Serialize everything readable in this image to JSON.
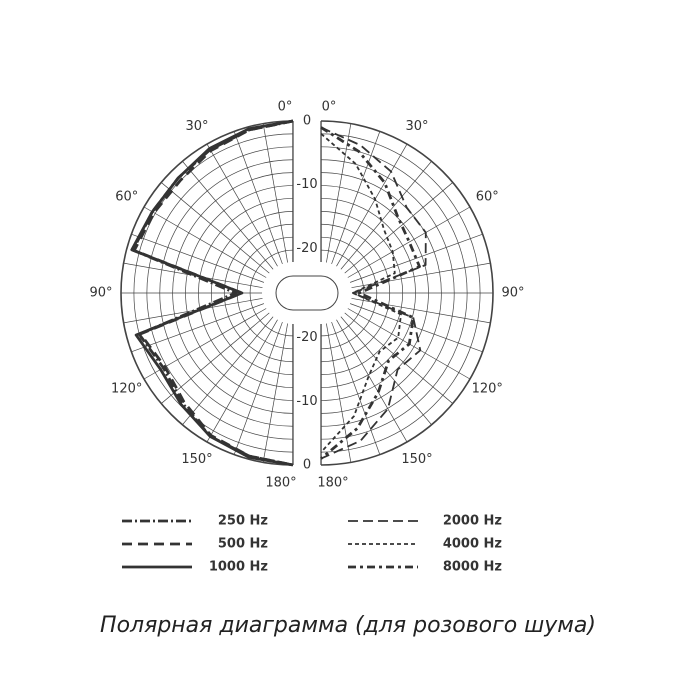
{
  "chart_data": {
    "type": "polar",
    "rlim": [
      -27,
      0
    ],
    "rticks": [
      0,
      -10,
      -20
    ],
    "angle_ticks": [
      {
        "value": 0,
        "label": "0°"
      },
      {
        "value": 30,
        "label": "30°"
      },
      {
        "value": 60,
        "label": "60°"
      },
      {
        "value": 90,
        "label": "90°"
      },
      {
        "value": 120,
        "label": "120°"
      },
      {
        "value": 150,
        "label": "150°"
      },
      {
        "value": 180,
        "label": "180°"
      }
    ],
    "angles": [
      0,
      15,
      30,
      45,
      60,
      75,
      90,
      105,
      120,
      135,
      150,
      165,
      180
    ],
    "series": [
      {
        "name": "250 Hz",
        "side": "left",
        "dash": "10 3 2 3",
        "color": "#333",
        "values": [
          0,
          -0.5,
          -1,
          -1.5,
          -1.5,
          -1,
          -18,
          -2,
          -3.5,
          -2.5,
          -1,
          -0.5,
          0
        ]
      },
      {
        "name": "500 Hz",
        "side": "left",
        "dash": "10 6",
        "color": "#333",
        "values": [
          0,
          -0.5,
          -1.2,
          -2,
          -1.8,
          -1.2,
          -19,
          -2.2,
          -3.8,
          -2.8,
          -1.2,
          -0.5,
          0
        ]
      },
      {
        "name": "1000 Hz",
        "side": "left",
        "dash": "none",
        "color": "#333",
        "values": [
          0,
          -0.3,
          -0.8,
          -1.5,
          -1.5,
          -0.8,
          -19,
          -1.5,
          -3,
          -2.2,
          -1,
          -0.3,
          0
        ]
      },
      {
        "name": "2000 Hz",
        "side": "right",
        "dash": "10 5",
        "color": "#333",
        "values": [
          -1,
          -3,
          -5,
          -8,
          -8,
          -10,
          -22,
          -12,
          -9,
          -10,
          -6,
          -3,
          -1
        ]
      },
      {
        "name": "4000 Hz",
        "side": "right",
        "dash": "4 3",
        "color": "#333",
        "values": [
          -2,
          -6,
          -10,
          -13,
          -14,
          -15,
          -22,
          -14,
          -13,
          -14,
          -12,
          -7,
          -2
        ]
      },
      {
        "name": "8000 Hz",
        "side": "right",
        "dash": "8 4 3 4",
        "color": "#333",
        "values": [
          -1,
          -4,
          -7,
          -10,
          -11,
          -11,
          -21,
          -12,
          -11,
          -12,
          -9,
          -5,
          -1
        ]
      }
    ],
    "caption": "Полярная диаграмма (для розового шума)"
  }
}
